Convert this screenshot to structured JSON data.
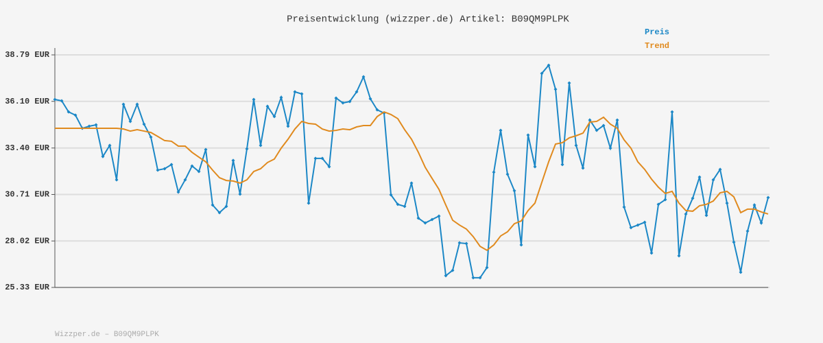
{
  "chart_data": {
    "type": "line",
    "title": "Preisentwicklung (wizzper.de) Artikel: B09QM9PLPK",
    "footer": "Wizzper.de – B09QM9PLPK",
    "ylim": [
      25.33,
      38.79
    ],
    "yticks": [
      {
        "value": 25.33,
        "label": "25.33 EUR"
      },
      {
        "value": 28.02,
        "label": "28.02 EUR"
      },
      {
        "value": 30.71,
        "label": "30.71 EUR"
      },
      {
        "value": 33.4,
        "label": "33.40 EUR"
      },
      {
        "value": 36.1,
        "label": "36.10 EUR"
      },
      {
        "value": 38.79,
        "label": "38.79 EUR"
      }
    ],
    "grid": true,
    "series": [
      {
        "name": "Preis",
        "color": "#1b87c6",
        "markers": true,
        "values": [
          36.21,
          36.13,
          35.49,
          35.3,
          34.54,
          34.66,
          34.74,
          32.91,
          33.55,
          31.56,
          35.93,
          34.94,
          35.93,
          34.78,
          34.03,
          32.12,
          32.2,
          32.44,
          30.85,
          31.56,
          32.36,
          32.04,
          33.31,
          30.1,
          29.66,
          30.02,
          32.68,
          30.73,
          33.35,
          36.21,
          33.55,
          35.81,
          35.22,
          36.33,
          34.66,
          36.65,
          36.53,
          30.21,
          32.8,
          32.8,
          32.32,
          36.29,
          36.01,
          36.09,
          36.65,
          37.52,
          36.25,
          35.61,
          35.42,
          30.69,
          30.14,
          30.02,
          31.37,
          29.34,
          29.06,
          29.26,
          29.46,
          26.01,
          26.32,
          27.91,
          27.87,
          25.89,
          25.89,
          26.48,
          32.0,
          34.42,
          31.88,
          30.93,
          27.79,
          34.15,
          32.32,
          37.72,
          38.19,
          36.8,
          32.44,
          37.16,
          33.55,
          32.24,
          35.02,
          34.42,
          34.7,
          33.39,
          35.02,
          29.98,
          28.79,
          28.94,
          29.1,
          27.32,
          30.14,
          30.41,
          35.49,
          27.16,
          29.58,
          30.49,
          31.72,
          29.5,
          31.56,
          32.16,
          30.21,
          27.95,
          26.21,
          28.59,
          30.1,
          29.06,
          30.53
        ]
      },
      {
        "name": "Trend",
        "color": "#e08a1e",
        "markers": false,
        "values": [
          34.54,
          34.54,
          34.54,
          34.54,
          34.54,
          34.54,
          34.54,
          34.54,
          34.54,
          34.54,
          34.5,
          34.38,
          34.46,
          34.38,
          34.3,
          34.07,
          33.83,
          33.79,
          33.51,
          33.51,
          33.15,
          32.87,
          32.6,
          32.12,
          31.68,
          31.52,
          31.49,
          31.37,
          31.56,
          32.04,
          32.2,
          32.56,
          32.76,
          33.39,
          33.91,
          34.5,
          34.94,
          34.82,
          34.78,
          34.5,
          34.38,
          34.42,
          34.5,
          34.46,
          34.62,
          34.7,
          34.7,
          35.22,
          35.49,
          35.34,
          35.1,
          34.46,
          33.91,
          33.15,
          32.28,
          31.64,
          31.01,
          30.1,
          29.22,
          28.94,
          28.71,
          28.27,
          27.71,
          27.48,
          27.79,
          28.31,
          28.55,
          29.02,
          29.18,
          29.78,
          30.21,
          31.41,
          32.6,
          33.63,
          33.71,
          33.99,
          34.11,
          34.26,
          34.9,
          34.94,
          35.18,
          34.78,
          34.54,
          33.87,
          33.39,
          32.6,
          32.16,
          31.6,
          31.13,
          30.77,
          30.89,
          30.21,
          29.78,
          29.74,
          30.06,
          30.14,
          30.33,
          30.81,
          30.89,
          30.57,
          29.66,
          29.86,
          29.86,
          29.7,
          29.58
        ]
      }
    ]
  }
}
